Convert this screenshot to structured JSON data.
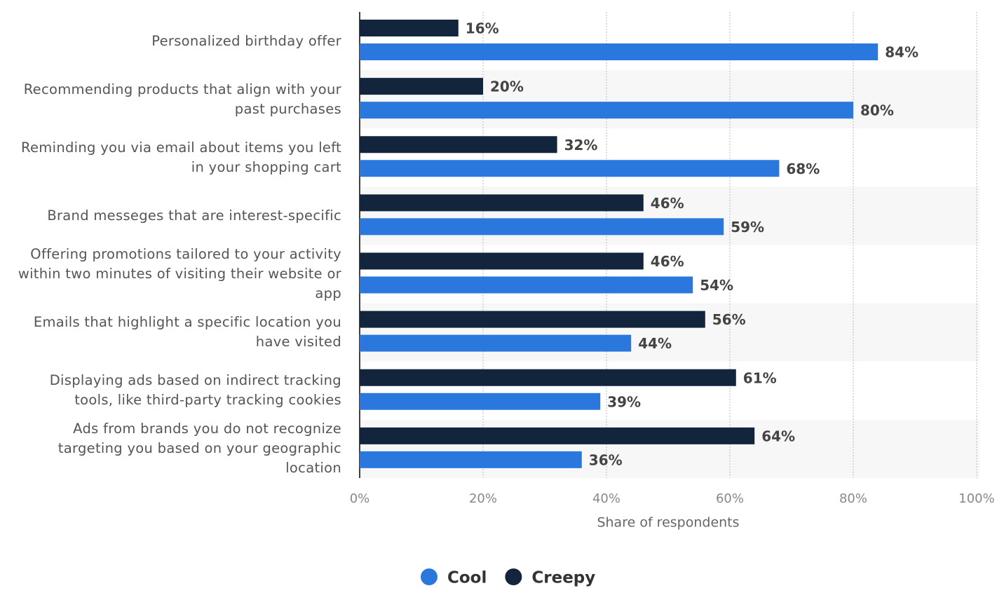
{
  "chart_data": {
    "type": "bar",
    "orientation": "horizontal",
    "categories": [
      "Personalized birthday offer",
      "Recommending products that align with your past purchases",
      "Reminding you via email about items you left in your shopping cart",
      "Brand messeges that are interest-specific",
      "Offering promotions tailored to your activity within two minutes of visiting their website or app",
      "Emails that highlight a specific location you have visited",
      "Displaying ads based on indirect tracking tools, like third-party tracking cookies",
      "Ads from brands you do not recognize targeting you based on your geographic location"
    ],
    "series": [
      {
        "name": "Cool",
        "color": "#2a78de",
        "values": [
          84,
          80,
          68,
          59,
          54,
          44,
          39,
          36
        ],
        "value_labels": [
          "84%",
          "80%",
          "68%",
          "59%",
          "54%",
          "44%",
          "39%",
          "36%"
        ]
      },
      {
        "name": "Creepy",
        "color": "#13243d",
        "values": [
          16,
          20,
          32,
          46,
          46,
          56,
          61,
          64
        ],
        "value_labels": [
          "16%",
          "20%",
          "32%",
          "46%",
          "46%",
          "56%",
          "61%",
          "64%"
        ]
      }
    ],
    "xlim": [
      0,
      100
    ],
    "xticks": [
      {
        "value": 0,
        "label": "0%"
      },
      {
        "value": 20,
        "label": "20%"
      },
      {
        "value": 40,
        "label": "40%"
      },
      {
        "value": 60,
        "label": "60%"
      },
      {
        "value": 80,
        "label": "80%"
      },
      {
        "value": 100,
        "label": "100%"
      }
    ],
    "xlabel": "Share of respondents",
    "grid": true,
    "legend": "bottom"
  }
}
